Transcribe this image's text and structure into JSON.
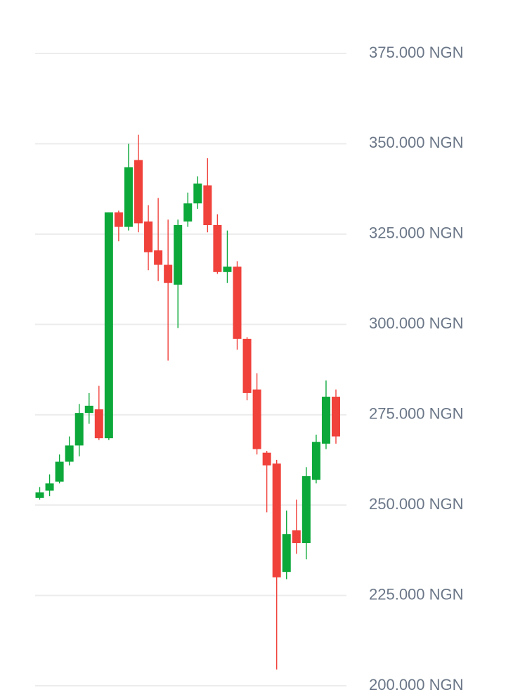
{
  "chart_data": {
    "type": "candlestick",
    "open": [
      252000,
      254000,
      256500,
      262000,
      266500,
      275500,
      276500,
      268500,
      331000,
      327000,
      345500,
      328500,
      320500,
      316500,
      311000,
      328500,
      333500,
      338500,
      327500,
      314500,
      316000,
      296000,
      282000,
      264500,
      261500,
      231500,
      243000,
      239500,
      257000,
      267000,
      280000
    ],
    "high": [
      255000,
      258500,
      264000,
      269000,
      278000,
      281000,
      283000,
      331000,
      331500,
      350000,
      352500,
      333000,
      335000,
      329000,
      329000,
      336500,
      341000,
      346000,
      330500,
      326000,
      317500,
      296500,
      286500,
      265000,
      262500,
      248500,
      251500,
      260500,
      269500,
      284500,
      282000
    ],
    "low": [
      251500,
      252500,
      256000,
      261000,
      263500,
      272500,
      268000,
      268000,
      323000,
      326000,
      325500,
      315000,
      312000,
      290000,
      299000,
      327000,
      332000,
      325500,
      314000,
      311500,
      293000,
      279000,
      264000,
      248000,
      204500,
      229500,
      236500,
      235000,
      256000,
      265500,
      267000
    ],
    "close": [
      253500,
      256000,
      262000,
      266500,
      275500,
      277500,
      268500,
      331000,
      327000,
      343500,
      328000,
      320000,
      316500,
      311500,
      327500,
      333500,
      339000,
      327500,
      314500,
      316000,
      296000,
      281000,
      265500,
      261000,
      230000,
      242000,
      239500,
      258000,
      267500,
      280000,
      269000
    ],
    "up_color": "#0ca83a",
    "down_color": "#f0413b",
    "ylim": [
      200000,
      375000
    ],
    "yticks": [
      {
        "value": 200000,
        "label": "200.000 NGN"
      },
      {
        "value": 225000,
        "label": "225.000 NGN"
      },
      {
        "value": 250000,
        "label": "250.000 NGN"
      },
      {
        "value": 275000,
        "label": "275.000 NGN"
      },
      {
        "value": 300000,
        "label": "300.000 NGN"
      },
      {
        "value": 325000,
        "label": "325.000 NGN"
      },
      {
        "value": 350000,
        "label": "350.000 NGN"
      },
      {
        "value": 375000,
        "label": "375.000 NGN"
      }
    ],
    "grid": true
  }
}
